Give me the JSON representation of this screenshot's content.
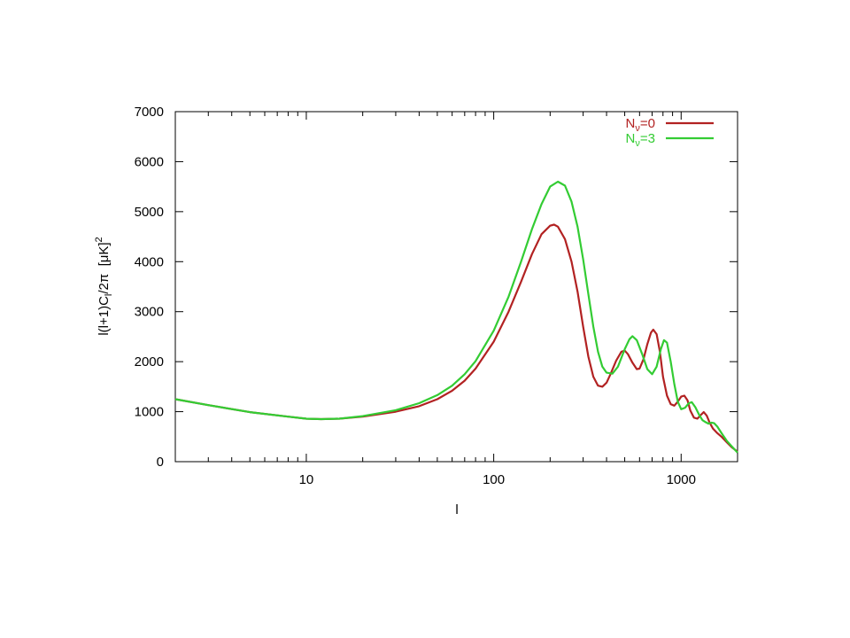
{
  "chart_data": {
    "type": "line",
    "x_scale": "log",
    "xlim": [
      2,
      2000
    ],
    "ylim": [
      0,
      7000
    ],
    "xlabel": "l",
    "ylabel_parts": [
      "l(l+1)C",
      "l",
      "/2π  [μK]",
      "2"
    ],
    "x_ticks": [
      {
        "value": 10,
        "label": "10"
      },
      {
        "value": 100,
        "label": "100"
      },
      {
        "value": 1000,
        "label": "1000"
      }
    ],
    "y_ticks": [
      {
        "value": 0,
        "label": "0"
      },
      {
        "value": 1000,
        "label": "1000"
      },
      {
        "value": 2000,
        "label": "2000"
      },
      {
        "value": 3000,
        "label": "3000"
      },
      {
        "value": 4000,
        "label": "4000"
      },
      {
        "value": 5000,
        "label": "5000"
      },
      {
        "value": 6000,
        "label": "6000"
      },
      {
        "value": 7000,
        "label": "7000"
      }
    ],
    "grid": false,
    "legend_position": "top-right",
    "series": [
      {
        "name": "Nν=0",
        "legend": {
          "main": "N",
          "sub": "ν",
          "rest": "=0"
        },
        "color": "#b22222",
        "points": [
          [
            2,
            1250
          ],
          [
            3,
            1130
          ],
          [
            5,
            990
          ],
          [
            8,
            900
          ],
          [
            10,
            860
          ],
          [
            12,
            850
          ],
          [
            15,
            860
          ],
          [
            20,
            900
          ],
          [
            30,
            1000
          ],
          [
            40,
            1110
          ],
          [
            50,
            1250
          ],
          [
            60,
            1420
          ],
          [
            70,
            1620
          ],
          [
            80,
            1860
          ],
          [
            100,
            2400
          ],
          [
            120,
            3000
          ],
          [
            140,
            3600
          ],
          [
            160,
            4150
          ],
          [
            180,
            4550
          ],
          [
            200,
            4720
          ],
          [
            210,
            4740
          ],
          [
            220,
            4700
          ],
          [
            240,
            4450
          ],
          [
            260,
            4000
          ],
          [
            280,
            3400
          ],
          [
            300,
            2700
          ],
          [
            320,
            2100
          ],
          [
            340,
            1700
          ],
          [
            360,
            1520
          ],
          [
            380,
            1500
          ],
          [
            400,
            1580
          ],
          [
            420,
            1750
          ],
          [
            450,
            2020
          ],
          [
            480,
            2200
          ],
          [
            500,
            2220
          ],
          [
            520,
            2150
          ],
          [
            550,
            1980
          ],
          [
            580,
            1850
          ],
          [
            600,
            1860
          ],
          [
            630,
            2050
          ],
          [
            660,
            2350
          ],
          [
            690,
            2580
          ],
          [
            710,
            2640
          ],
          [
            740,
            2550
          ],
          [
            770,
            2200
          ],
          [
            800,
            1700
          ],
          [
            840,
            1320
          ],
          [
            880,
            1150
          ],
          [
            920,
            1120
          ],
          [
            960,
            1200
          ],
          [
            1000,
            1300
          ],
          [
            1040,
            1320
          ],
          [
            1080,
            1230
          ],
          [
            1120,
            1020
          ],
          [
            1170,
            880
          ],
          [
            1220,
            860
          ],
          [
            1270,
            930
          ],
          [
            1320,
            990
          ],
          [
            1370,
            920
          ],
          [
            1420,
            780
          ],
          [
            1480,
            660
          ],
          [
            1550,
            580
          ],
          [
            1640,
            500
          ],
          [
            1750,
            390
          ],
          [
            1860,
            290
          ],
          [
            2000,
            200
          ]
        ]
      },
      {
        "name": "Nν=3",
        "legend": {
          "main": "N",
          "sub": "ν",
          "rest": "=3"
        },
        "color": "#33cc33",
        "points": [
          [
            2,
            1250
          ],
          [
            3,
            1130
          ],
          [
            5,
            990
          ],
          [
            8,
            900
          ],
          [
            10,
            860
          ],
          [
            12,
            850
          ],
          [
            15,
            860
          ],
          [
            20,
            910
          ],
          [
            30,
            1030
          ],
          [
            40,
            1170
          ],
          [
            50,
            1330
          ],
          [
            60,
            1520
          ],
          [
            70,
            1750
          ],
          [
            80,
            2010
          ],
          [
            100,
            2620
          ],
          [
            120,
            3300
          ],
          [
            140,
            4000
          ],
          [
            160,
            4650
          ],
          [
            180,
            5150
          ],
          [
            200,
            5500
          ],
          [
            220,
            5600
          ],
          [
            240,
            5520
          ],
          [
            260,
            5200
          ],
          [
            280,
            4700
          ],
          [
            300,
            4050
          ],
          [
            320,
            3350
          ],
          [
            340,
            2700
          ],
          [
            360,
            2200
          ],
          [
            380,
            1900
          ],
          [
            400,
            1780
          ],
          [
            430,
            1760
          ],
          [
            460,
            1900
          ],
          [
            500,
            2250
          ],
          [
            530,
            2450
          ],
          [
            550,
            2510
          ],
          [
            580,
            2430
          ],
          [
            620,
            2150
          ],
          [
            660,
            1850
          ],
          [
            700,
            1750
          ],
          [
            740,
            1900
          ],
          [
            780,
            2250
          ],
          [
            810,
            2430
          ],
          [
            840,
            2380
          ],
          [
            880,
            2000
          ],
          [
            920,
            1550
          ],
          [
            960,
            1200
          ],
          [
            1000,
            1050
          ],
          [
            1050,
            1080
          ],
          [
            1100,
            1170
          ],
          [
            1140,
            1190
          ],
          [
            1190,
            1090
          ],
          [
            1250,
            930
          ],
          [
            1300,
            830
          ],
          [
            1350,
            790
          ],
          [
            1400,
            760
          ],
          [
            1450,
            780
          ],
          [
            1500,
            770
          ],
          [
            1560,
            700
          ],
          [
            1650,
            560
          ],
          [
            1750,
            420
          ],
          [
            1870,
            300
          ],
          [
            2000,
            180
          ]
        ]
      }
    ]
  }
}
